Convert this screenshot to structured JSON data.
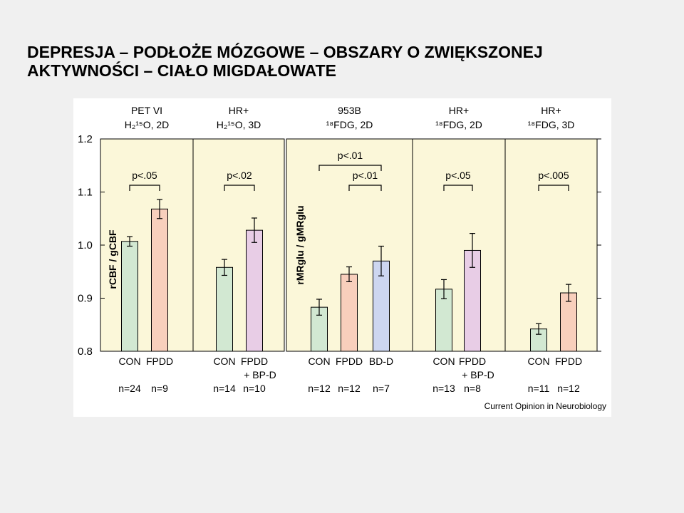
{
  "slide": {
    "title_line1": "DEPRESJA – PODŁOŻE MÓZGOWE – OBSZARY O ZWIĘKSZONEJ",
    "title_line2": "AKTYWNOŚCI – CIAŁO MIGDAŁOWATE"
  },
  "colors": {
    "panel_bg": "#fbf7d9",
    "con": "#d2e8d2",
    "fpdd": "#f8cfbc",
    "fpdd_bp": "#e8cde6",
    "bd": "#cdd6f0",
    "stroke": "#000000"
  },
  "chart_data": {
    "type": "bar",
    "ylim": [
      0.8,
      1.2
    ],
    "yticks": [
      "0.8",
      "0.9",
      "1.0",
      "1.1",
      "1.2"
    ],
    "ylabel_left": "rCBF / gCBF",
    "ylabel_right": "rMRglu / gMRglu",
    "source": "Current Opinion in Neurobiology",
    "panels": [
      {
        "header_line1": "PET VI",
        "header_line2": "H₂¹⁵O, 2D",
        "bars": [
          {
            "label": "CON",
            "label2": "",
            "n": "n=24",
            "value": 1.007,
            "err": 0.009,
            "color": "con"
          },
          {
            "label": "FPDD",
            "label2": "",
            "n": "n=9",
            "value": 1.068,
            "err": 0.018,
            "color": "fpdd"
          }
        ],
        "sig": [
          {
            "text": "p<.05",
            "from": 0,
            "to": 1,
            "level": 0
          }
        ]
      },
      {
        "header_line1": "HR+",
        "header_line2": "H₂¹⁵O, 3D",
        "bars": [
          {
            "label": "CON",
            "label2": "",
            "n": "n=14",
            "value": 0.958,
            "err": 0.015,
            "color": "con"
          },
          {
            "label": "FPDD",
            "label2": "+ BP-D",
            "n": "n=10",
            "value": 1.028,
            "err": 0.023,
            "color": "fpdd_bp"
          }
        ],
        "sig": [
          {
            "text": "p<.02",
            "from": 0,
            "to": 1,
            "level": 0
          }
        ]
      },
      {
        "header_line1": "953B",
        "header_line2": "¹⁸FDG, 2D",
        "bars": [
          {
            "label": "CON",
            "label2": "",
            "n": "n=12",
            "value": 0.883,
            "err": 0.015,
            "color": "con"
          },
          {
            "label": "FPDD",
            "label2": "",
            "n": "n=12",
            "value": 0.945,
            "err": 0.014,
            "color": "fpdd"
          },
          {
            "label": "BD-D",
            "label2": "",
            "n": "n=7",
            "value": 0.97,
            "err": 0.028,
            "color": "bd"
          }
        ],
        "sig": [
          {
            "text": "p<.01",
            "from": 0,
            "to": 2,
            "level": 1
          },
          {
            "text": "p<.01",
            "from": 1,
            "to": 2,
            "level": 0
          }
        ]
      },
      {
        "header_line1": "HR+",
        "header_line2": "¹⁸FDG, 2D",
        "bars": [
          {
            "label": "CON",
            "label2": "",
            "n": "n=13",
            "value": 0.917,
            "err": 0.018,
            "color": "con"
          },
          {
            "label": "FPDD",
            "label2": "+ BP-D",
            "n": "n=8",
            "value": 0.99,
            "err": 0.032,
            "color": "fpdd_bp"
          }
        ],
        "sig": [
          {
            "text": "p<.05",
            "from": 0,
            "to": 1,
            "level": 0
          }
        ]
      },
      {
        "header_line1": "HR+",
        "header_line2": "¹⁸FDG, 3D",
        "bars": [
          {
            "label": "CON",
            "label2": "",
            "n": "n=11",
            "value": 0.842,
            "err": 0.01,
            "color": "con"
          },
          {
            "label": "FPDD",
            "label2": "",
            "n": "n=12",
            "value": 0.91,
            "err": 0.016,
            "color": "fpdd"
          }
        ],
        "sig": [
          {
            "text": "p<.005",
            "from": 0,
            "to": 1,
            "level": 0
          }
        ]
      }
    ]
  }
}
